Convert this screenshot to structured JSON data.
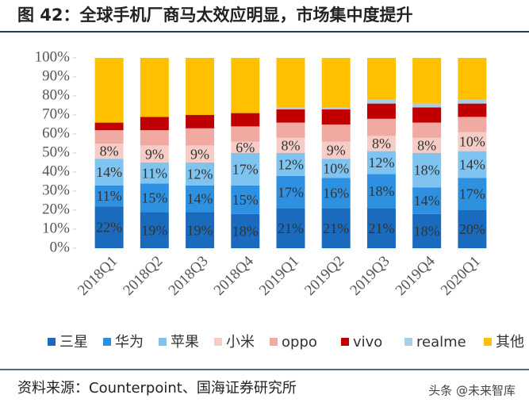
{
  "title": "图 42：全球手机厂商马太效应明显，市场集中度提升",
  "source": "资料来源：Counterpoint、国海证券研究所",
  "watermark": "头条 @未来智库",
  "chart_data": {
    "type": "stacked_bar",
    "categories": [
      "2018Q1",
      "2018Q2",
      "2018Q3",
      "2018Q4",
      "2019Q1",
      "2019Q2",
      "2019Q3",
      "2019Q4",
      "2020Q1"
    ],
    "series": [
      {
        "name": "三星",
        "color": "#1a6bbd",
        "values": [
          22,
          19,
          19,
          18,
          21,
          21,
          21,
          18,
          20
        ],
        "value_labels": [
          "22%",
          "19%",
          "19%",
          "18%",
          "21%",
          "21%",
          "21%",
          "18%",
          "20%"
        ]
      },
      {
        "name": "华为",
        "color": "#2e90e0",
        "values": [
          11,
          15,
          14,
          15,
          17,
          16,
          18,
          14,
          17
        ],
        "value_labels": [
          "11%",
          "15%",
          "14%",
          "15%",
          "17%",
          "16%",
          "18%",
          "14%",
          "17%"
        ]
      },
      {
        "name": "苹果",
        "color": "#7fc4f0",
        "values": [
          14,
          11,
          12,
          17,
          12,
          10,
          12,
          18,
          14
        ],
        "value_labels": [
          "14%",
          "11%",
          "12%",
          "17%",
          "12%",
          "10%",
          "12%",
          "18%",
          "14%"
        ]
      },
      {
        "name": "小米",
        "color": "#f5cdc6",
        "values": [
          8,
          9,
          9,
          6,
          8,
          9,
          8,
          8,
          10
        ],
        "value_labels": [
          "8%",
          "9%",
          "9%",
          "6%",
          "8%",
          "9%",
          "8%",
          "8%",
          "10%"
        ]
      },
      {
        "name": "oppo",
        "color": "#f0aaa2",
        "values": [
          7,
          8,
          9,
          8,
          8,
          9,
          9,
          8,
          8
        ]
      },
      {
        "name": "vivo",
        "color": "#c00000",
        "values": [
          4,
          7,
          7,
          7,
          7,
          8,
          8,
          8,
          7
        ]
      },
      {
        "name": "realme",
        "color": "#a9cfe8",
        "values": [
          0,
          0,
          0,
          0,
          1,
          1,
          2,
          2,
          2
        ]
      },
      {
        "name": "其他",
        "color": "#ffc000",
        "values": [
          34,
          31,
          30,
          29,
          26,
          26,
          22,
          24,
          22
        ]
      }
    ],
    "ylim": [
      0,
      100
    ],
    "yticks": [
      {
        "value": 0,
        "label": "0%"
      },
      {
        "value": 10,
        "label": "10%"
      },
      {
        "value": 20,
        "label": "20%"
      },
      {
        "value": 30,
        "label": "30%"
      },
      {
        "value": 40,
        "label": "40%"
      },
      {
        "value": 50,
        "label": "50%"
      },
      {
        "value": 60,
        "label": "60%"
      },
      {
        "value": 70,
        "label": "70%"
      },
      {
        "value": 80,
        "label": "80%"
      },
      {
        "value": 90,
        "label": "90%"
      },
      {
        "value": 100,
        "label": "100%"
      }
    ]
  }
}
